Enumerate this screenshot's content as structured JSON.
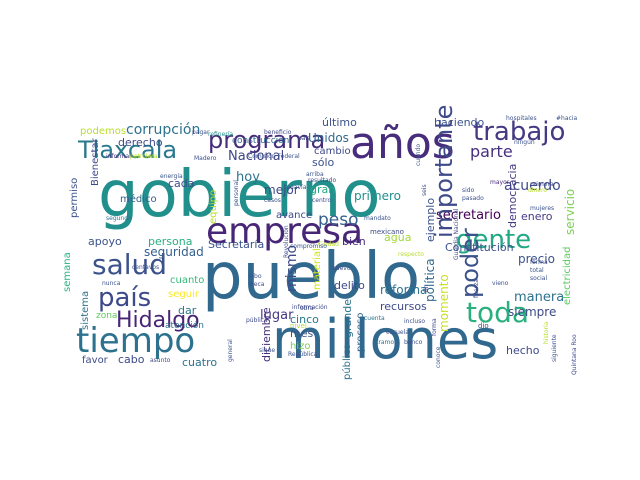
{
  "word_cloud": {
    "words": [
      {
        "text": "gobierno",
        "color": "#21908d"
      },
      {
        "text": "pueblo",
        "color": "#31688e"
      },
      {
        "text": "millones",
        "color": "#31688e"
      },
      {
        "text": "años",
        "color": "#472d7b"
      },
      {
        "text": "empresa",
        "color": "#482677"
      },
      {
        "text": "tiempo",
        "color": "#2c728e"
      },
      {
        "text": "trabajo",
        "color": "#443983"
      },
      {
        "text": "programa",
        "color": "#472c7a"
      },
      {
        "text": "Tlaxcala",
        "color": "#2a788e"
      },
      {
        "text": "salud",
        "color": "#3b528b"
      },
      {
        "text": "país",
        "color": "#3e4989"
      },
      {
        "text": "Hidalgo",
        "color": "#482475"
      },
      {
        "text": "toda",
        "color": "#2ab07f"
      },
      {
        "text": "gente",
        "color": "#22a884"
      },
      {
        "text": "poder",
        "color": "#3b528b"
      },
      {
        "text": "peso",
        "color": "#3e4a89"
      },
      {
        "text": "importante",
        "color": "#35608d"
      },
      {
        "text": "corrupción",
        "color": "#2c728e"
      },
      {
        "text": "parte",
        "color": "#472f7d"
      },
      {
        "text": "acuerdo",
        "color": "#3e4a89"
      },
      {
        "text": "haciendo",
        "color": "#3b528b"
      },
      {
        "text": "último",
        "color": "#3b528b"
      },
      {
        "text": "podemos",
        "color": "#b8de29"
      },
      {
        "text": "derecho",
        "color": "#3e4a89"
      },
      {
        "text": "Unidos",
        "color": "#31688e"
      },
      {
        "text": "Nacional",
        "color": "#404688"
      },
      {
        "text": "cambio",
        "color": "#3e4989"
      },
      {
        "text": "sólo",
        "color": "#3b528b"
      },
      {
        "text": "hoy",
        "color": "#2c728e"
      },
      {
        "text": "cada",
        "color": "#3e4a89"
      },
      {
        "text": "mejor",
        "color": "#3e4a89"
      },
      {
        "text": "gran",
        "color": "#22a884"
      },
      {
        "text": "primero",
        "color": "#21908d"
      },
      {
        "text": "ejemplo",
        "color": "#3b528b"
      },
      {
        "text": "secretario",
        "color": "#440154"
      },
      {
        "text": "enero",
        "color": "#443a83"
      },
      {
        "text": "Constitución",
        "color": "#3b528b"
      },
      {
        "text": "servicio",
        "color": "#7ad151"
      },
      {
        "text": "electricidad",
        "color": "#5ec962"
      },
      {
        "text": "democracia",
        "color": "#443983"
      },
      {
        "text": "Secretaría",
        "color": "#3b528b"
      },
      {
        "text": "persona",
        "color": "#29af7f"
      },
      {
        "text": "apoyo",
        "color": "#3b528b"
      },
      {
        "text": "seguridad",
        "color": "#355f8d"
      },
      {
        "text": "mismo",
        "color": "#3e4989"
      },
      {
        "text": "bien",
        "color": "#472f7d"
      },
      {
        "text": "agua",
        "color": "#a0da39"
      },
      {
        "text": "política",
        "color": "#31688e"
      },
      {
        "text": "momento",
        "color": "#c8e020"
      },
      {
        "text": "precio",
        "color": "#3b528b"
      },
      {
        "text": "manera",
        "color": "#2c728e"
      },
      {
        "text": "siempre",
        "color": "#3e4a89"
      },
      {
        "text": "cuanto",
        "color": "#35b779"
      },
      {
        "text": "seguir",
        "color": "#fde725"
      },
      {
        "text": "dar",
        "color": "#2a788e"
      },
      {
        "text": "lugar",
        "color": "#443983"
      },
      {
        "text": "material",
        "color": "#d0e11c"
      },
      {
        "text": "delito",
        "color": "#3e4989"
      },
      {
        "text": "reforma",
        "color": "#2c728e"
      },
      {
        "text": "recursos",
        "color": "#3e4a89"
      },
      {
        "text": "diciembre",
        "color": "#472d7b"
      },
      {
        "text": "cinco",
        "color": "#2a788e"
      },
      {
        "text": "mes",
        "color": "#3b528b"
      },
      {
        "text": "hizo",
        "color": "#7ad151"
      },
      {
        "text": "grande",
        "color": "#2c728e"
      },
      {
        "text": "proceso",
        "color": "#31688e"
      },
      {
        "text": "público",
        "color": "#2c728e"
      },
      {
        "text": "hecho",
        "color": "#3e4989"
      },
      {
        "text": "favor",
        "color": "#3e4a89"
      },
      {
        "text": "cabo",
        "color": "#3e4989"
      },
      {
        "text": "cuatro",
        "color": "#2c728e"
      },
      {
        "text": "semana",
        "color": "#2ab07f"
      },
      {
        "text": "sistema",
        "color": "#2c728e"
      },
      {
        "text": "zona",
        "color": "#5ec962"
      },
      {
        "text": "atención",
        "color": "#2c728e"
      },
      {
        "text": "permiso",
        "color": "#3b528b"
      },
      {
        "text": "médico",
        "color": "#35608d"
      },
      {
        "text": "Bienestar",
        "color": "#3e4a89"
      },
      {
        "text": "avance",
        "color": "#3e4a89"
      },
      {
        "text": "construcción",
        "color": "#31688e"
      },
      {
        "text": "Comisión Federal",
        "color": "#3b528b"
      },
      {
        "text": "equipo",
        "color": "#b8de29"
      },
      {
        "text": "Madero",
        "color": "#3b528b"
      },
      {
        "text": "refinería",
        "color": "#21908d"
      },
      {
        "text": "beneficio",
        "color": "#3e4989"
      },
      {
        "text": "pagar",
        "color": "#3b528b"
      },
      {
        "text": "informar",
        "color": "#443983"
      },
      {
        "text": "petrolera",
        "color": "#b8de29"
      },
      {
        "text": "hospitales",
        "color": "#3b528b"
      },
      {
        "text": "#hacia",
        "color": "#3b528b"
      },
      {
        "text": "Guardia Nacional",
        "color": "#3e4a89"
      },
      {
        "text": "Quintana Roo",
        "color": "#3e4989"
      },
      {
        "text": "mayor",
        "color": "#472d7b"
      },
      {
        "text": "mujeres",
        "color": "#3b528b"
      },
      {
        "text": "Ciudad",
        "color": "#b8de29"
      },
      {
        "text": "mexicano",
        "color": "#3e4a89"
      },
      {
        "text": "respecto",
        "color": "#b8de29"
      },
      {
        "text": "personal",
        "color": "#3b528b"
      },
      {
        "text": "mandato",
        "color": "#3b528b"
      },
      {
        "text": "centavos",
        "color": "#3b528b"
      },
      {
        "text": "nunca",
        "color": "#3b528b"
      },
      {
        "text": "segundo",
        "color": "#2c728e"
      },
      {
        "text": "cuenta",
        "color": "#2c728e"
      },
      {
        "text": "escuela",
        "color": "#3b528b"
      },
      {
        "text": "nuevo",
        "color": "#3e4a89"
      },
      {
        "text": "tramo",
        "color": "#2c728e"
      },
      {
        "text": "banco",
        "color": "#3b528b"
      },
      {
        "text": "incluso",
        "color": "#3b528b"
      },
      {
        "text": "sigue",
        "color": "#3b528b"
      },
      {
        "text": "general",
        "color": "#3b528b"
      },
      {
        "text": "asunto",
        "color": "#3e4a89"
      },
      {
        "text": "República",
        "color": "#3b528b"
      },
      {
        "text": "dio",
        "color": "#3e4989"
      },
      {
        "text": "siguiente",
        "color": "#3b528b"
      },
      {
        "text": "historia",
        "color": "#b8de29"
      },
      {
        "text": "robo",
        "color": "#3e4a89"
      },
      {
        "text": "beca",
        "color": "#3b528b"
      },
      {
        "text": "fin",
        "color": "#3e4a89"
      },
      {
        "text": "forma",
        "color": "#3e4a89"
      },
      {
        "text": "total",
        "color": "#3e4a89"
      },
      {
        "text": "social",
        "color": "#3b528b"
      },
      {
        "text": "vieno",
        "color": "#3b528b"
      },
      {
        "text": "fuerza",
        "color": "#3b528b"
      },
      {
        "text": "arriba",
        "color": "#3e4a89"
      },
      {
        "text": "resultado",
        "color": "#3b528b"
      },
      {
        "text": "todavía",
        "color": "#3b528b"
      },
      {
        "text": "casos",
        "color": "#3b528b"
      },
      {
        "text": "centro",
        "color": "#3b528b"
      },
      {
        "text": "sido",
        "color": "#3e4a89"
      },
      {
        "text": "pasado",
        "color": "#3b528b"
      },
      {
        "text": "ningún",
        "color": "#3b528b"
      },
      {
        "text": "primera",
        "color": "#3b528b"
      },
      {
        "text": "dinero",
        "color": "#3e4a89"
      },
      {
        "text": "energía",
        "color": "#b8de29"
      },
      {
        "text": "país",
        "color": "#3b528b"
      },
      {
        "text": "seis",
        "color": "#3e4a89"
      },
      {
        "text": "Revolución",
        "color": "#3e4a89"
      },
      {
        "text": "obra",
        "color": "#3e4a89"
      },
      {
        "text": "nivel",
        "color": "#3e4a89"
      },
      {
        "text": "pública",
        "color": "#b8de29"
      },
      {
        "text": "conoce",
        "color": "#3e4a89"
      },
      {
        "text": "compromiso",
        "color": "#3b528b"
      },
      {
        "text": "cuando",
        "color": "#3b528b"
      },
      {
        "text": "información",
        "color": "#3b528b"
      },
      {
        "text": "vez",
        "color": "#3e4a89"
      }
    ]
  }
}
